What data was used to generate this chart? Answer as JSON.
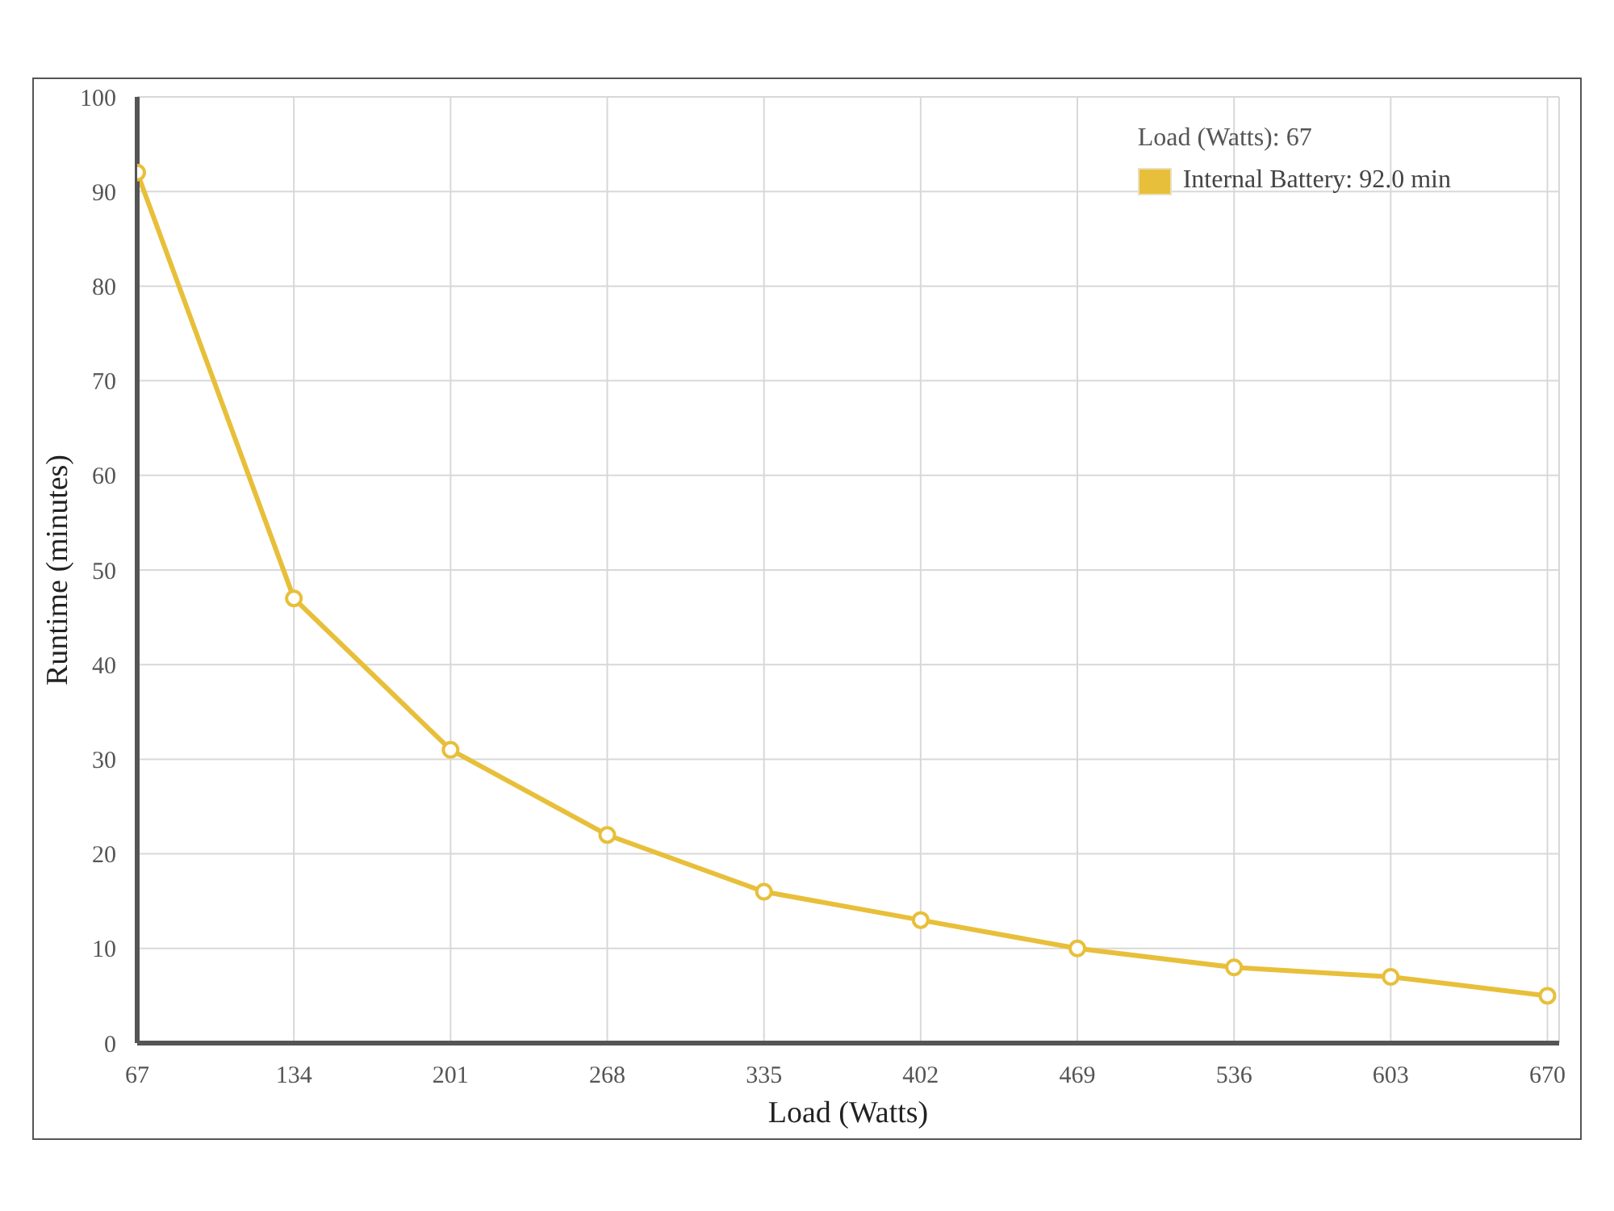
{
  "chart_data": {
    "type": "line",
    "xlabel": "Load (Watts)",
    "ylabel": "Runtime (minutes)",
    "legend_title": "Load (Watts): 67",
    "x": [
      67,
      134,
      201,
      268,
      335,
      402,
      469,
      536,
      603,
      670
    ],
    "series": [
      {
        "name": "Internal Battery: 92.0 min",
        "color": "#e8bf3a",
        "values": [
          92,
          47,
          31,
          22,
          16,
          13,
          10,
          8,
          7,
          5
        ]
      }
    ],
    "xlim": [
      67,
      675
    ],
    "xticks": [
      67,
      134,
      201,
      268,
      335,
      402,
      469,
      536,
      603,
      670
    ],
    "ylim": [
      0,
      100
    ],
    "yticks": [
      0,
      10,
      20,
      30,
      40,
      50,
      60,
      70,
      80,
      90,
      100
    ],
    "grid": true,
    "legend": "top right",
    "marker": "circle",
    "line_style": "solid"
  }
}
